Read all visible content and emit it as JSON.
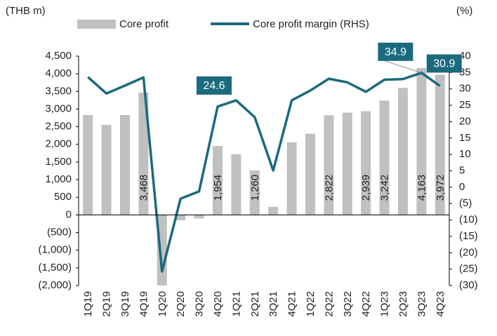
{
  "chart_data": {
    "type": "bar",
    "y_unit_label": "(THB m)",
    "y2_unit_label": "(%)",
    "categories": [
      "1Q19",
      "2Q19",
      "3Q19",
      "4Q19",
      "1Q20",
      "2Q20",
      "3Q20",
      "4Q20",
      "1Q21",
      "2Q21",
      "3Q21",
      "4Q21",
      "1Q22",
      "2Q22",
      "3Q22",
      "4Q22",
      "1Q23",
      "2Q23",
      "3Q23",
      "4Q23"
    ],
    "series": [
      {
        "name": "Core profit",
        "type": "bar",
        "color": "#c0c0c0",
        "axis": "y",
        "values": [
          2830,
          2550,
          2830,
          3468,
          -2000,
          -150,
          -100,
          1954,
          1720,
          1260,
          230,
          2060,
          2300,
          2822,
          2900,
          2939,
          3242,
          3600,
          4163,
          3972
        ],
        "value_labels": [
          null,
          null,
          null,
          "3,468",
          null,
          null,
          null,
          "1,954",
          null,
          "1,260",
          null,
          null,
          null,
          "2,822",
          null,
          "2,939",
          "3,242",
          null,
          "4,163",
          "3,972"
        ]
      },
      {
        "name": "Core profit margin (RHS)",
        "type": "line",
        "color": "#1b6a7e",
        "axis": "y2",
        "values": [
          33.6,
          28.6,
          31,
          33.5,
          -25.7,
          -3.5,
          -1.3,
          24.6,
          26.5,
          21.4,
          5.1,
          26.5,
          29.5,
          33.1,
          32,
          29.1,
          32.8,
          33,
          34.9,
          30.9
        ],
        "value_labels": [
          null,
          null,
          null,
          null,
          null,
          null,
          null,
          "24.6",
          null,
          null,
          null,
          null,
          null,
          null,
          null,
          null,
          null,
          null,
          "34.9",
          "30.9"
        ]
      }
    ],
    "ylim": [
      -2000,
      4500
    ],
    "yticks": [
      {
        "value": 4500,
        "label": "4,500"
      },
      {
        "value": 4000,
        "label": "4,000"
      },
      {
        "value": 3500,
        "label": "3,500"
      },
      {
        "value": 3000,
        "label": "3,000"
      },
      {
        "value": 2500,
        "label": "2,500"
      },
      {
        "value": 2000,
        "label": "2,000"
      },
      {
        "value": 1500,
        "label": "1,500"
      },
      {
        "value": 1000,
        "label": "1,000"
      },
      500,
      0,
      {
        "value": -500,
        "label": "(500)"
      },
      {
        "value": -1000,
        "label": "(1,000)"
      },
      {
        "value": -1500,
        "label": "(1,500)"
      },
      {
        "value": -2000,
        "label": "(2,000)"
      }
    ],
    "y2lim": [
      -30,
      40
    ],
    "y2ticks": [
      40,
      35,
      30,
      25,
      20,
      15,
      10,
      5,
      0,
      {
        "value": -5,
        "label": "(5)"
      },
      {
        "value": -10,
        "label": "(10)"
      },
      {
        "value": -15,
        "label": "(15)"
      },
      {
        "value": -20,
        "label": "(20)"
      },
      {
        "value": -25,
        "label": "(25)"
      },
      {
        "value": -30,
        "label": "(30)"
      }
    ],
    "legend": "top"
  }
}
